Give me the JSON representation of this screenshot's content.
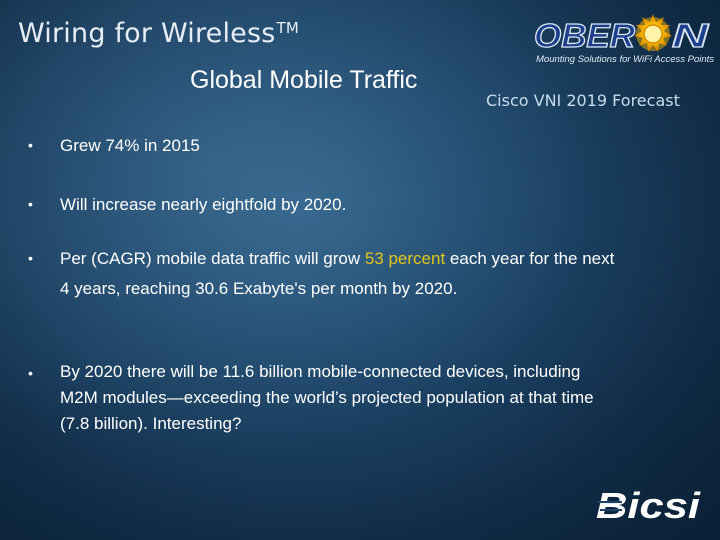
{
  "header": {
    "brand_title": "Wiring for Wireless",
    "brand_mark": "TM",
    "slide_title": "Global Mobile Traffic",
    "subtitle": "Cisco VNI 2019 Forecast"
  },
  "logos": {
    "oberon_name": "OBERON",
    "oberon_tagline": "Mounting Solutions for WiFi Access Points",
    "bicsi_name": "Bicsi"
  },
  "bullet_glyph": "•",
  "bullets": [
    {
      "text": "Grew 74% in 2015"
    },
    {
      "text": "Will increase nearly eightfold by 2020."
    },
    {
      "before": "Per (CAGR) mobile data traffic will grow ",
      "highlight": "53 percent",
      "after": " each year for the next 4 years, reaching 30.6 Exabyte's per month by 2020."
    },
    {
      "text": "By 2020 there will be 11.6 billion mobile-connected devices, including M2M modules—exceeding the world’s projected population at that time (7.8 billion). Interesting?"
    }
  ],
  "colors": {
    "background": "#1d4466",
    "highlight": "#e3c419",
    "text": "#ffffff"
  }
}
